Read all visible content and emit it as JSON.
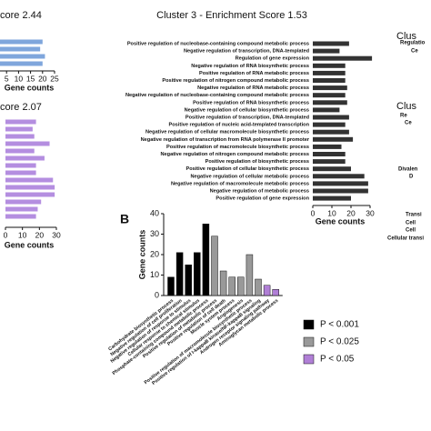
{
  "chart_data": [
    {
      "type": "barh",
      "title": "core 2.44",
      "xlabel": "Gene counts",
      "categories": [
        null,
        null,
        null,
        null
      ],
      "values": [
        20,
        19,
        21,
        20
      ],
      "color": "#7fa6dc",
      "xlim": [
        0,
        25
      ],
      "xticks": [
        5,
        10,
        15,
        20,
        25
      ]
    },
    {
      "type": "barh",
      "title": "core 2.07",
      "xlabel": "Gene counts",
      "categories": [
        null,
        null,
        null,
        null,
        null,
        null,
        null,
        null,
        null,
        null,
        null,
        null,
        null,
        null
      ],
      "values": [
        18,
        16,
        17,
        26,
        17,
        23,
        18,
        18,
        28,
        29,
        29,
        21,
        19,
        18
      ],
      "color": "#b48ee0",
      "xlim": [
        0,
        30
      ],
      "xticks": [
        0,
        10,
        20,
        30
      ]
    },
    {
      "type": "barh",
      "title": "Cluster 3 - Enrichment Score 1.53",
      "xlabel": "Gene counts",
      "categories": [
        "Positive regulation of nucleobase-containing compound metabolic process",
        "Negative regulation of transcription, DNA-templated",
        "Regulation of gene expression",
        "Negative regulation of RNA biosynthetic process",
        "Positive regulation of RNA metabolic process",
        "Positive regulation of nitrogen compound metabolic process",
        "Negative regulation of RNA metabolic process",
        "Negative regulation of nucleobase-containing compound metabolic process",
        "Positive regulation of RNA biosynthetic process",
        "Negative regulation of cellular biosynthetic process",
        "Positive regulation of transcription, DNA-templated",
        "Positive regulation of nucleic acid-templated transcription",
        "Negative regulation of cellular macromolecule biosynthetic process",
        "Negative regulation of transcription from RNA polymerase II promoter",
        "Positive regulation of macromolecule biosynthetic process",
        "Negative regulation of nitrogen compound metabolic process",
        "Positive regulation of biosynthetic process",
        "Positive regulation of cellular biosynthetic process",
        "Negative regulation of cellular metabolic process",
        "Negative regulation of macromolecule metabolic process",
        "Negative regulation of metabolic process",
        "Positive regulation of gene expression"
      ],
      "values": [
        19,
        14,
        31,
        17,
        17,
        17,
        18,
        17,
        18,
        14,
        19,
        17,
        19,
        21,
        15,
        17,
        17,
        20,
        27,
        29,
        29,
        20
      ],
      "color": "#333333",
      "xlim": [
        0,
        30
      ],
      "xticks": [
        0,
        10,
        20,
        30
      ]
    },
    {
      "type": "bar",
      "panel": "B",
      "ylabel": "Gene counts",
      "categories": [
        "Carbohydrate biosynthetic process",
        "Negative regulation of cell proliferation",
        "Negative regulation of response to stimulus",
        "Cellular response to chemical stimulus",
        "Phosphate-containing compound metabolic process",
        "Positive regulation of metabolic process",
        "Positive regulation of cell death",
        "Muscle system process",
        "Angiogenesis",
        "Positive regulation of macromolecule biosynthetic process",
        "Positive regulation of I-kappaB kinase/NF-kappaB signaling",
        "Androgen receptor signaling pathway",
        "Aminoglycan metabolic process"
      ],
      "values": [
        9,
        21,
        15,
        21,
        35,
        29,
        12,
        9,
        9,
        20,
        8,
        5,
        3
      ],
      "colors": [
        "#000000",
        "#000000",
        "#000000",
        "#000000",
        "#000000",
        "#999999",
        "#999999",
        "#999999",
        "#999999",
        "#999999",
        "#999999",
        "#b07fd6",
        "#b07fd6"
      ],
      "ylim": [
        0,
        40
      ],
      "yticks": [
        0,
        10,
        20,
        30,
        40
      ],
      "legend": [
        {
          "label": "P < 0.001",
          "color": "#000000"
        },
        {
          "label": "P < 0.025",
          "color": "#999999"
        },
        {
          "label": "P < 0.05",
          "color": "#b07fd6"
        }
      ]
    },
    {
      "type": "fragments",
      "texts": [
        "Clus",
        "Regulatio",
        "Ce",
        "Clus",
        "Re",
        "Ce",
        "Divalen",
        "D",
        "Transi",
        "Cell",
        "Cell",
        "Cellular transi"
      ]
    }
  ]
}
